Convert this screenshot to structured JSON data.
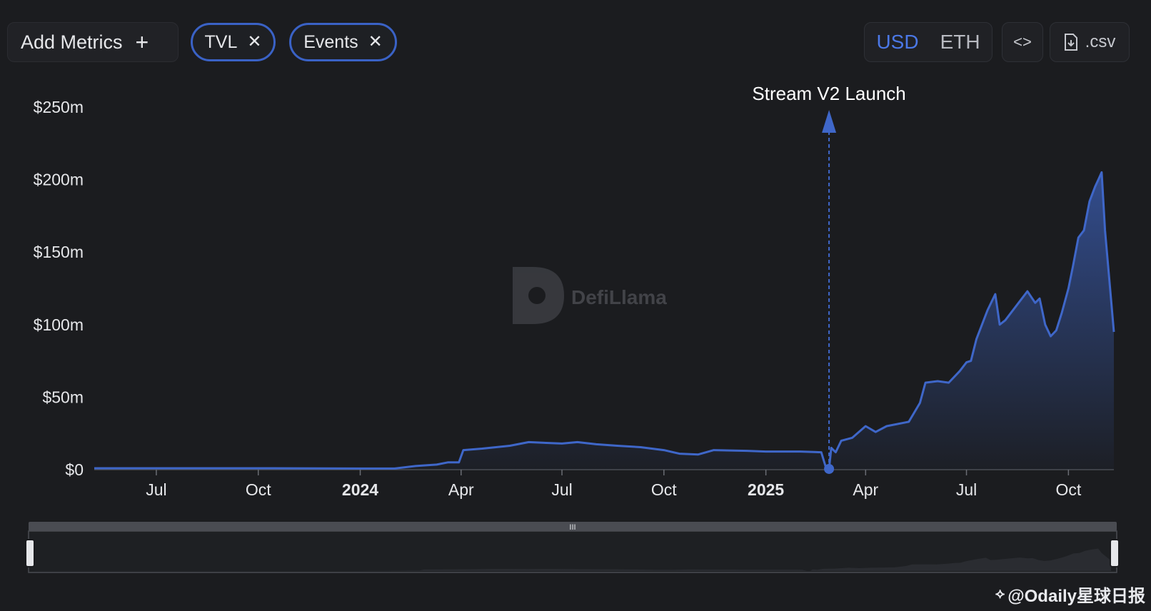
{
  "toolbar": {
    "add_metrics_label": "Add Metrics",
    "chips": [
      {
        "label": "TVL"
      },
      {
        "label": "Events"
      }
    ],
    "currency": {
      "usd": "USD",
      "eth": "ETH",
      "selected": "USD"
    },
    "csv_label": ".csv"
  },
  "watermark": "DefiLlama",
  "footer_credit": "@Odaily星球日报",
  "colors": {
    "series": "#3f67c9",
    "background": "#1b1c1f",
    "accent": "#4b78e6"
  },
  "chart_data": {
    "type": "area",
    "title": "",
    "xlabel": "",
    "ylabel": "",
    "y_ticks": [
      "$0",
      "$50m",
      "$100m",
      "$150m",
      "$200m",
      "$250m"
    ],
    "ylim": [
      0,
      250
    ],
    "x_ticks": [
      "Jul",
      "Oct",
      "2024",
      "Apr",
      "Jul",
      "Oct",
      "2025",
      "Apr",
      "Jul",
      "Oct"
    ],
    "x_tick_dates": [
      "2023-07-01",
      "2023-10-01",
      "2024-01-01",
      "2024-04-01",
      "2024-07-01",
      "2024-10-01",
      "2025-01-01",
      "2025-04-01",
      "2025-07-01",
      "2025-10-01"
    ],
    "xlim": [
      "2023-05-06",
      "2025-11-11"
    ],
    "annotation": {
      "label": "Stream V2 Launch",
      "date": "2025-02-27"
    },
    "series": [
      {
        "name": "TVL",
        "points": [
          [
            "2023-05-06",
            1.0
          ],
          [
            "2023-07-01",
            1.0
          ],
          [
            "2023-10-01",
            1.0
          ],
          [
            "2024-01-01",
            0.8
          ],
          [
            "2024-02-01",
            0.8
          ],
          [
            "2024-02-20",
            2.5
          ],
          [
            "2024-03-10",
            3.5
          ],
          [
            "2024-03-20",
            5.0
          ],
          [
            "2024-03-30",
            5.0
          ],
          [
            "2024-04-03",
            13.5
          ],
          [
            "2024-04-20",
            14.5
          ],
          [
            "2024-05-15",
            16.5
          ],
          [
            "2024-06-01",
            19.0
          ],
          [
            "2024-07-01",
            18.0
          ],
          [
            "2024-07-15",
            19.0
          ],
          [
            "2024-08-01",
            17.5
          ],
          [
            "2024-08-20",
            16.5
          ],
          [
            "2024-09-10",
            15.5
          ],
          [
            "2024-10-01",
            13.5
          ],
          [
            "2024-10-15",
            11.0
          ],
          [
            "2024-11-01",
            10.5
          ],
          [
            "2024-11-15",
            13.5
          ],
          [
            "2024-12-15",
            13.0
          ],
          [
            "2025-01-01",
            12.5
          ],
          [
            "2025-02-01",
            12.5
          ],
          [
            "2025-02-20",
            12.0
          ],
          [
            "2025-02-24",
            2.0
          ],
          [
            "2025-02-27",
            0.5
          ],
          [
            "2025-03-01",
            15.0
          ],
          [
            "2025-03-05",
            12.0
          ],
          [
            "2025-03-10",
            20.0
          ],
          [
            "2025-03-20",
            22.0
          ],
          [
            "2025-04-01",
            30.0
          ],
          [
            "2025-04-10",
            26.0
          ],
          [
            "2025-04-20",
            30.0
          ],
          [
            "2025-05-10",
            33.0
          ],
          [
            "2025-05-20",
            46.0
          ],
          [
            "2025-05-25",
            60.0
          ],
          [
            "2025-06-05",
            61.0
          ],
          [
            "2025-06-15",
            60.0
          ],
          [
            "2025-06-25",
            68.0
          ],
          [
            "2025-07-01",
            74.0
          ],
          [
            "2025-07-05",
            75.0
          ],
          [
            "2025-07-10",
            90.0
          ],
          [
            "2025-07-20",
            110.0
          ],
          [
            "2025-07-27",
            121.0
          ],
          [
            "2025-07-31",
            100.0
          ],
          [
            "2025-08-05",
            103.0
          ],
          [
            "2025-08-20",
            118.0
          ],
          [
            "2025-08-25",
            123.0
          ],
          [
            "2025-09-01",
            115.0
          ],
          [
            "2025-09-05",
            118.0
          ],
          [
            "2025-09-10",
            100.0
          ],
          [
            "2025-09-15",
            92.0
          ],
          [
            "2025-09-20",
            96.0
          ],
          [
            "2025-09-25",
            108.0
          ],
          [
            "2025-10-01",
            125.0
          ],
          [
            "2025-10-05",
            140.0
          ],
          [
            "2025-10-10",
            160.0
          ],
          [
            "2025-10-15",
            165.0
          ],
          [
            "2025-10-20",
            185.0
          ],
          [
            "2025-10-25",
            195.0
          ],
          [
            "2025-10-28",
            200.0
          ],
          [
            "2025-10-31",
            205.0
          ],
          [
            "2025-11-03",
            165.0
          ],
          [
            "2025-11-07",
            130.0
          ],
          [
            "2025-11-11",
            95.0
          ]
        ]
      }
    ],
    "grid": false,
    "legend": "none"
  }
}
